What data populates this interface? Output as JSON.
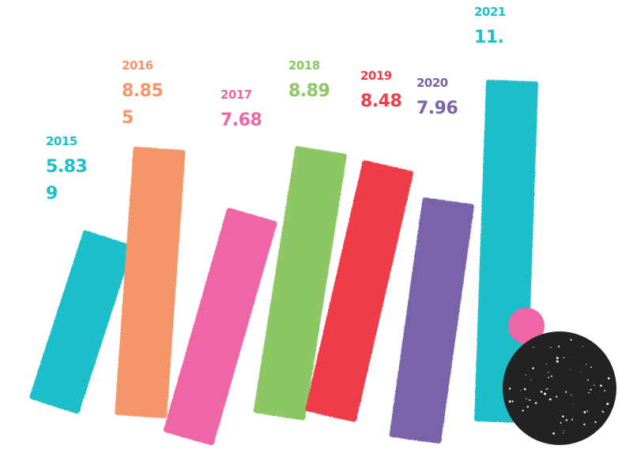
{
  "chart_data": {
    "type": "bar",
    "categories": [
      "2015",
      "2016",
      "2017",
      "2018",
      "2019",
      "2020",
      "2021"
    ],
    "values": [
      "5.839",
      "8.855",
      "7.68",
      "8.89",
      "8.48",
      "7.96",
      "11.25"
    ],
    "value_label_lines": [
      [
        "5.83",
        "9"
      ],
      [
        "8.85",
        "5"
      ],
      [
        "7.68",
        ""
      ],
      [
        "8.89",
        ""
      ],
      [
        "8.48",
        ""
      ],
      [
        "7.96",
        ""
      ],
      [
        "11.",
        ""
      ]
    ],
    "colors": [
      "#1FBFC9",
      "#F5956B",
      "#EE66A6",
      "#8CC665",
      "#EE3E4A",
      "#7A63AA",
      "#1FBFC9"
    ],
    "title": "",
    "xlabel": "",
    "ylabel": "",
    "grid": false,
    "legend": "none"
  },
  "decorations": {
    "pink_dot_color": "#EE66A6",
    "black_dot_color": "#222222"
  }
}
